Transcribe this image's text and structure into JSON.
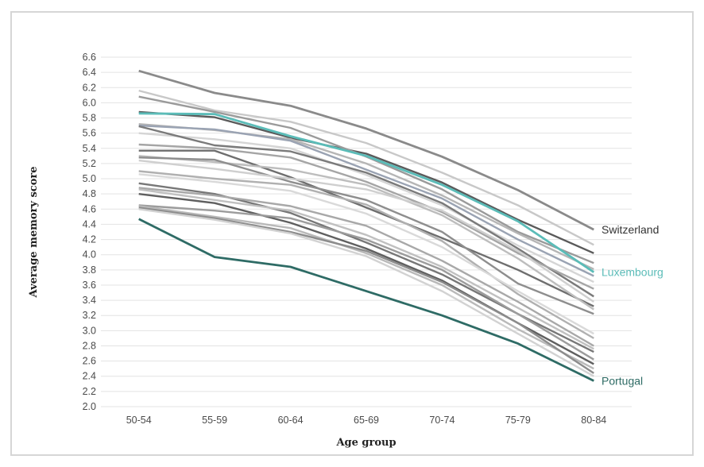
{
  "chart_data": {
    "type": "line",
    "xlabel": "Age group",
    "ylabel": "Average memory score",
    "categories": [
      "50-54",
      "55-59",
      "60-64",
      "65-69",
      "70-74",
      "75-79",
      "80-84"
    ],
    "ylim": [
      2.0,
      6.6
    ],
    "yticks": [
      "2.0",
      "2.2",
      "2.4",
      "2.6",
      "2.8",
      "3.0",
      "3.2",
      "3.4",
      "3.6",
      "3.8",
      "4.0",
      "4.2",
      "4.4",
      "4.6",
      "4.8",
      "5.0",
      "5.2",
      "5.4",
      "5.6",
      "5.8",
      "6.0",
      "6.2",
      "6.4",
      "6.6"
    ],
    "grid": true,
    "highlight_series": [
      {
        "name": "Switzerland",
        "color": "#8a8a8a",
        "values": [
          6.42,
          6.13,
          5.96,
          5.66,
          5.29,
          4.85,
          4.33
        ]
      },
      {
        "name": "Luxembourg",
        "color": "#5bbcb8",
        "values": [
          5.86,
          5.85,
          5.56,
          5.3,
          4.92,
          4.44,
          3.77
        ]
      },
      {
        "name": "Portugal",
        "color": "#2e6b65",
        "values": [
          4.47,
          3.97,
          3.84,
          3.52,
          3.2,
          2.83,
          2.34
        ]
      }
    ],
    "background_series": [
      {
        "color": "#c8c8c8",
        "values": [
          6.16,
          5.9,
          5.75,
          5.47,
          5.08,
          4.65,
          4.13
        ]
      },
      {
        "color": "#5a5a5a",
        "values": [
          5.88,
          5.81,
          5.54,
          5.33,
          4.95,
          4.46,
          4.02
        ]
      },
      {
        "color": "#9a9a9a",
        "values": [
          6.08,
          5.88,
          5.67,
          5.29,
          4.86,
          4.3,
          3.89
        ]
      },
      {
        "color": "#b5b5b5",
        "values": [
          5.72,
          5.64,
          5.52,
          5.2,
          4.78,
          4.28,
          3.81
        ]
      },
      {
        "color": "#9aa3b3",
        "values": [
          5.7,
          5.65,
          5.5,
          5.12,
          4.74,
          4.2,
          3.72
        ]
      },
      {
        "color": "#d5d5d5",
        "values": [
          5.6,
          5.52,
          5.4,
          5.05,
          4.65,
          4.12,
          3.64
        ]
      },
      {
        "color": "#7a7a7a",
        "values": [
          5.69,
          5.44,
          5.36,
          5.08,
          4.68,
          4.08,
          3.45
        ]
      },
      {
        "color": "#a5a5a5",
        "values": [
          5.45,
          5.4,
          5.28,
          4.96,
          4.56,
          4.02,
          3.55
        ]
      },
      {
        "color": "#6e6e6e",
        "values": [
          5.37,
          5.37,
          5.02,
          4.62,
          4.22,
          3.8,
          3.32
        ]
      },
      {
        "color": "#bdbdbd",
        "values": [
          5.3,
          5.22,
          5.12,
          4.92,
          4.52,
          3.95,
          3.28
        ]
      },
      {
        "color": "#8e8e8e",
        "values": [
          5.28,
          5.25,
          4.96,
          4.72,
          4.3,
          3.62,
          3.22
        ]
      },
      {
        "color": "#cfcfcf",
        "values": [
          5.24,
          5.13,
          5.0,
          4.86,
          4.58,
          4.05,
          3.38
        ]
      },
      {
        "color": "#b0b0b0",
        "values": [
          5.1,
          5.0,
          4.92,
          4.66,
          4.18,
          3.48,
          2.9
        ]
      },
      {
        "color": "#d9d9d9",
        "values": [
          5.06,
          4.96,
          4.84,
          4.54,
          4.1,
          3.52,
          2.96
        ]
      },
      {
        "color": "#777777",
        "values": [
          4.94,
          4.8,
          4.55,
          4.16,
          3.74,
          3.22,
          2.72
        ]
      },
      {
        "color": "#a8a8a8",
        "values": [
          4.88,
          4.78,
          4.64,
          4.38,
          3.92,
          3.38,
          2.8
        ]
      },
      {
        "color": "#c0c0c0",
        "values": [
          4.86,
          4.72,
          4.58,
          4.26,
          3.84,
          3.3,
          2.76
        ]
      },
      {
        "color": "#5f5f5f",
        "values": [
          4.8,
          4.68,
          4.42,
          4.08,
          3.66,
          3.1,
          2.56
        ]
      },
      {
        "color": "#9c9c9c",
        "values": [
          4.65,
          4.58,
          4.48,
          4.2,
          3.8,
          3.22,
          2.62
        ]
      },
      {
        "color": "#b9b9b9",
        "values": [
          4.64,
          4.5,
          4.35,
          4.02,
          3.6,
          3.02,
          2.5
        ]
      },
      {
        "color": "#8c8c8c",
        "values": [
          4.62,
          4.48,
          4.3,
          4.05,
          3.64,
          3.1,
          2.44
        ]
      },
      {
        "color": "#d2d2d2",
        "values": [
          4.6,
          4.46,
          4.28,
          3.98,
          3.52,
          2.96,
          2.4
        ]
      }
    ]
  }
}
